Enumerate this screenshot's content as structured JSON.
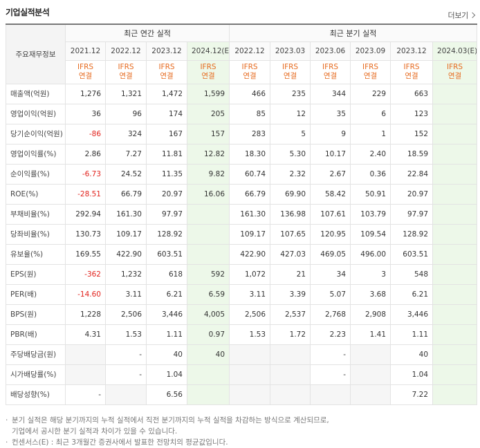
{
  "header": {
    "title": "기업실적분석",
    "more_label": "더보기"
  },
  "table": {
    "row_header": "주요재무정보",
    "group_annual": "최근 연간 실적",
    "group_quarter": "최근 분기 실적",
    "periods": [
      "2021.12",
      "2022.12",
      "2023.12",
      "2024.12(E)",
      "2022.12",
      "2023.03",
      "2023.06",
      "2023.09",
      "2023.12",
      "2024.03(E)"
    ],
    "ifrs_top": "IFRS",
    "ifrs_bottom": "연결",
    "rows": [
      {
        "label": "매출액(억원)",
        "values": [
          "1,276",
          "1,321",
          "1,472",
          "1,599",
          "466",
          "235",
          "344",
          "229",
          "663",
          ""
        ]
      },
      {
        "label": "영업이익(억원)",
        "values": [
          "36",
          "96",
          "174",
          "205",
          "85",
          "12",
          "35",
          "6",
          "123",
          ""
        ]
      },
      {
        "label": "당기순이익(억원)",
        "values": [
          "-86",
          "324",
          "167",
          "157",
          "283",
          "5",
          "9",
          "1",
          "152",
          ""
        ]
      },
      {
        "label": "영업이익률(%)",
        "values": [
          "2.86",
          "7.27",
          "11.81",
          "12.82",
          "18.30",
          "5.30",
          "10.17",
          "2.40",
          "18.59",
          ""
        ]
      },
      {
        "label": "순이익률(%)",
        "values": [
          "-6.73",
          "24.52",
          "11.35",
          "9.82",
          "60.74",
          "2.32",
          "2.67",
          "0.36",
          "22.84",
          ""
        ]
      },
      {
        "label": "ROE(%)",
        "values": [
          "-28.51",
          "66.79",
          "20.97",
          "16.06",
          "66.79",
          "69.90",
          "58.42",
          "50.91",
          "20.97",
          ""
        ]
      },
      {
        "label": "부채비율(%)",
        "values": [
          "292.94",
          "161.30",
          "97.97",
          "",
          "161.30",
          "136.98",
          "107.61",
          "103.79",
          "97.97",
          ""
        ]
      },
      {
        "label": "당좌비율(%)",
        "values": [
          "130.73",
          "109.17",
          "128.92",
          "",
          "109.17",
          "107.65",
          "120.95",
          "109.54",
          "128.92",
          ""
        ]
      },
      {
        "label": "유보율(%)",
        "values": [
          "169.55",
          "422.90",
          "603.51",
          "",
          "422.90",
          "427.03",
          "469.05",
          "496.00",
          "603.51",
          ""
        ]
      },
      {
        "label": "EPS(원)",
        "values": [
          "-362",
          "1,232",
          "618",
          "592",
          "1,072",
          "21",
          "34",
          "3",
          "548",
          ""
        ]
      },
      {
        "label": "PER(배)",
        "values": [
          "-14.60",
          "3.11",
          "6.21",
          "6.59",
          "3.11",
          "3.39",
          "5.07",
          "3.68",
          "6.21",
          ""
        ]
      },
      {
        "label": "BPS(원)",
        "values": [
          "1,228",
          "2,506",
          "3,446",
          "4,005",
          "2,506",
          "2,537",
          "2,768",
          "2,908",
          "3,446",
          ""
        ]
      },
      {
        "label": "PBR(배)",
        "values": [
          "4.31",
          "1.53",
          "1.11",
          "0.97",
          "1.53",
          "1.72",
          "2.23",
          "1.41",
          "1.11",
          ""
        ]
      },
      {
        "label": "주당배당금(원)",
        "values": [
          "",
          "-",
          "40",
          "40",
          "",
          "",
          "-",
          "",
          "40",
          ""
        ]
      },
      {
        "label": "시가배당률(%)",
        "values": [
          "",
          "-",
          "1.04",
          "",
          "",
          "",
          "-",
          "",
          "1.04",
          ""
        ]
      },
      {
        "label": "배당성향(%)",
        "values": [
          "-",
          "",
          "6.56",
          "",
          "",
          "",
          "",
          "",
          "7.22",
          ""
        ]
      }
    ]
  },
  "notes": [
    "분기 실적은 해당 분기까지의 누적 실적에서 직전 분기까지의 누적 실적을 차감하는 방식으로 계산되므로,",
    "기업에서 공시한 분기 실적과 차이가 있을 수 있습니다.",
    "컨센서스(E) : 최근 3개월간 증권사에서 발표한 전망치의 평균값입니다."
  ],
  "colors": {
    "negative": "#e2221c",
    "ifrs": "#e66a1e",
    "estimate_bg": "#edf8e9"
  }
}
